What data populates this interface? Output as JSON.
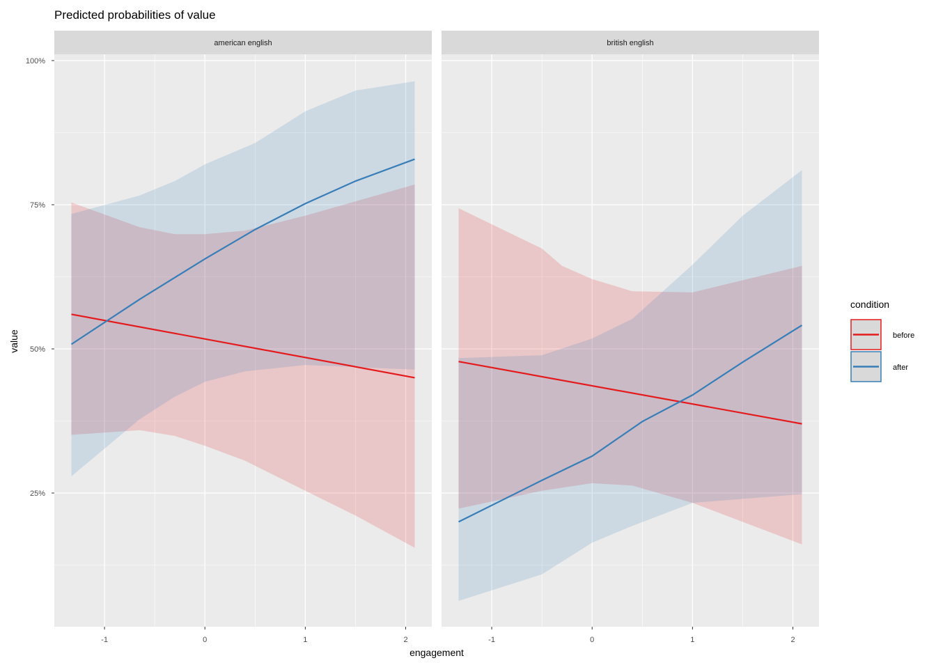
{
  "chart_data": {
    "type": "line",
    "title": "Predicted probabilities of value",
    "xlabel": "engagement",
    "ylabel": "value",
    "xlim": [
      -1.5,
      2.26
    ],
    "ylim": [
      0.018,
      1.01
    ],
    "x_ticks": [
      -1,
      0,
      1,
      2
    ],
    "x_tick_labels": [
      "-1",
      "0",
      "1",
      "2"
    ],
    "y_ticks": [
      0.25,
      0.5,
      0.75,
      1.0
    ],
    "y_tick_labels": [
      "25%",
      "50%",
      "75%",
      "100%"
    ],
    "grid": true,
    "legend": {
      "title": "condition",
      "position": "right",
      "entries": [
        "before",
        "after"
      ]
    },
    "colors": {
      "before": "#e41a1c",
      "after": "#377eb8"
    },
    "panels": [
      {
        "label": "american english",
        "series": [
          {
            "name": "before",
            "line": {
              "x": [
                -1.33,
                2.09
              ],
              "y": [
                0.56,
                0.45
              ]
            },
            "ribbon": {
              "upper": {
                "x": [
                  -1.33,
                  -0.65,
                  -0.3,
                  0,
                  0.4,
                  1,
                  2.09
                ],
                "y": [
                  0.754,
                  0.711,
                  0.699,
                  0.699,
                  0.705,
                  0.731,
                  0.785
                ]
              },
              "lower": {
                "x": [
                  -1.33,
                  -0.65,
                  -0.3,
                  0,
                  0.4,
                  1,
                  1.5,
                  2.09
                ],
                "y": [
                  0.351,
                  0.359,
                  0.349,
                  0.332,
                  0.306,
                  0.254,
                  0.211,
                  0.155
                ]
              }
            }
          },
          {
            "name": "after",
            "line": {
              "x": [
                -1.33,
                -0.65,
                0,
                0.5,
                1,
                1.5,
                2.09
              ],
              "y": [
                0.508,
                0.586,
                0.656,
                0.707,
                0.752,
                0.791,
                0.829
              ]
            },
            "ribbon": {
              "upper": {
                "x": [
                  -1.33,
                  -0.65,
                  -0.3,
                  0,
                  0.5,
                  1,
                  1.5,
                  2.09
                ],
                "y": [
                  0.734,
                  0.766,
                  0.791,
                  0.82,
                  0.857,
                  0.912,
                  0.948,
                  0.964
                ]
              },
              "lower": {
                "x": [
                  -1.33,
                  -0.65,
                  -0.3,
                  0,
                  0.4,
                  1,
                  2.09
                ],
                "y": [
                  0.279,
                  0.378,
                  0.417,
                  0.443,
                  0.461,
                  0.472,
                  0.464
                ]
              }
            }
          }
        ]
      },
      {
        "label": "british english",
        "series": [
          {
            "name": "before",
            "line": {
              "x": [
                -1.33,
                2.09
              ],
              "y": [
                0.478,
                0.37
              ]
            },
            "ribbon": {
              "upper": {
                "x": [
                  -1.33,
                  -0.5,
                  -0.3,
                  0,
                  0.4,
                  1,
                  2.09
                ],
                "y": [
                  0.744,
                  0.674,
                  0.644,
                  0.621,
                  0.6,
                  0.598,
                  0.644
                ]
              },
              "lower": {
                "x": [
                  -1.33,
                  -0.5,
                  0,
                  0.4,
                  1,
                  2.09
                ],
                "y": [
                  0.223,
                  0.254,
                  0.267,
                  0.263,
                  0.233,
                  0.161
                ]
              }
            }
          },
          {
            "name": "after",
            "line": {
              "x": [
                -1.33,
                -0.5,
                0,
                0.5,
                1,
                1.5,
                2.09
              ],
              "y": [
                0.2,
                0.272,
                0.314,
                0.374,
                0.42,
                0.477,
                0.541
              ]
            },
            "ribbon": {
              "upper": {
                "x": [
                  -1.33,
                  -0.5,
                  0,
                  0.4,
                  1,
                  1.5,
                  2.09
                ],
                "y": [
                  0.484,
                  0.489,
                  0.518,
                  0.552,
                  0.646,
                  0.731,
                  0.81
                ]
              },
              "lower": {
                "x": [
                  -1.33,
                  -0.5,
                  0,
                  0.4,
                  1,
                  2.09
                ],
                "y": [
                  0.063,
                  0.109,
                  0.164,
                  0.193,
                  0.233,
                  0.248
                ]
              }
            }
          }
        ]
      }
    ]
  }
}
